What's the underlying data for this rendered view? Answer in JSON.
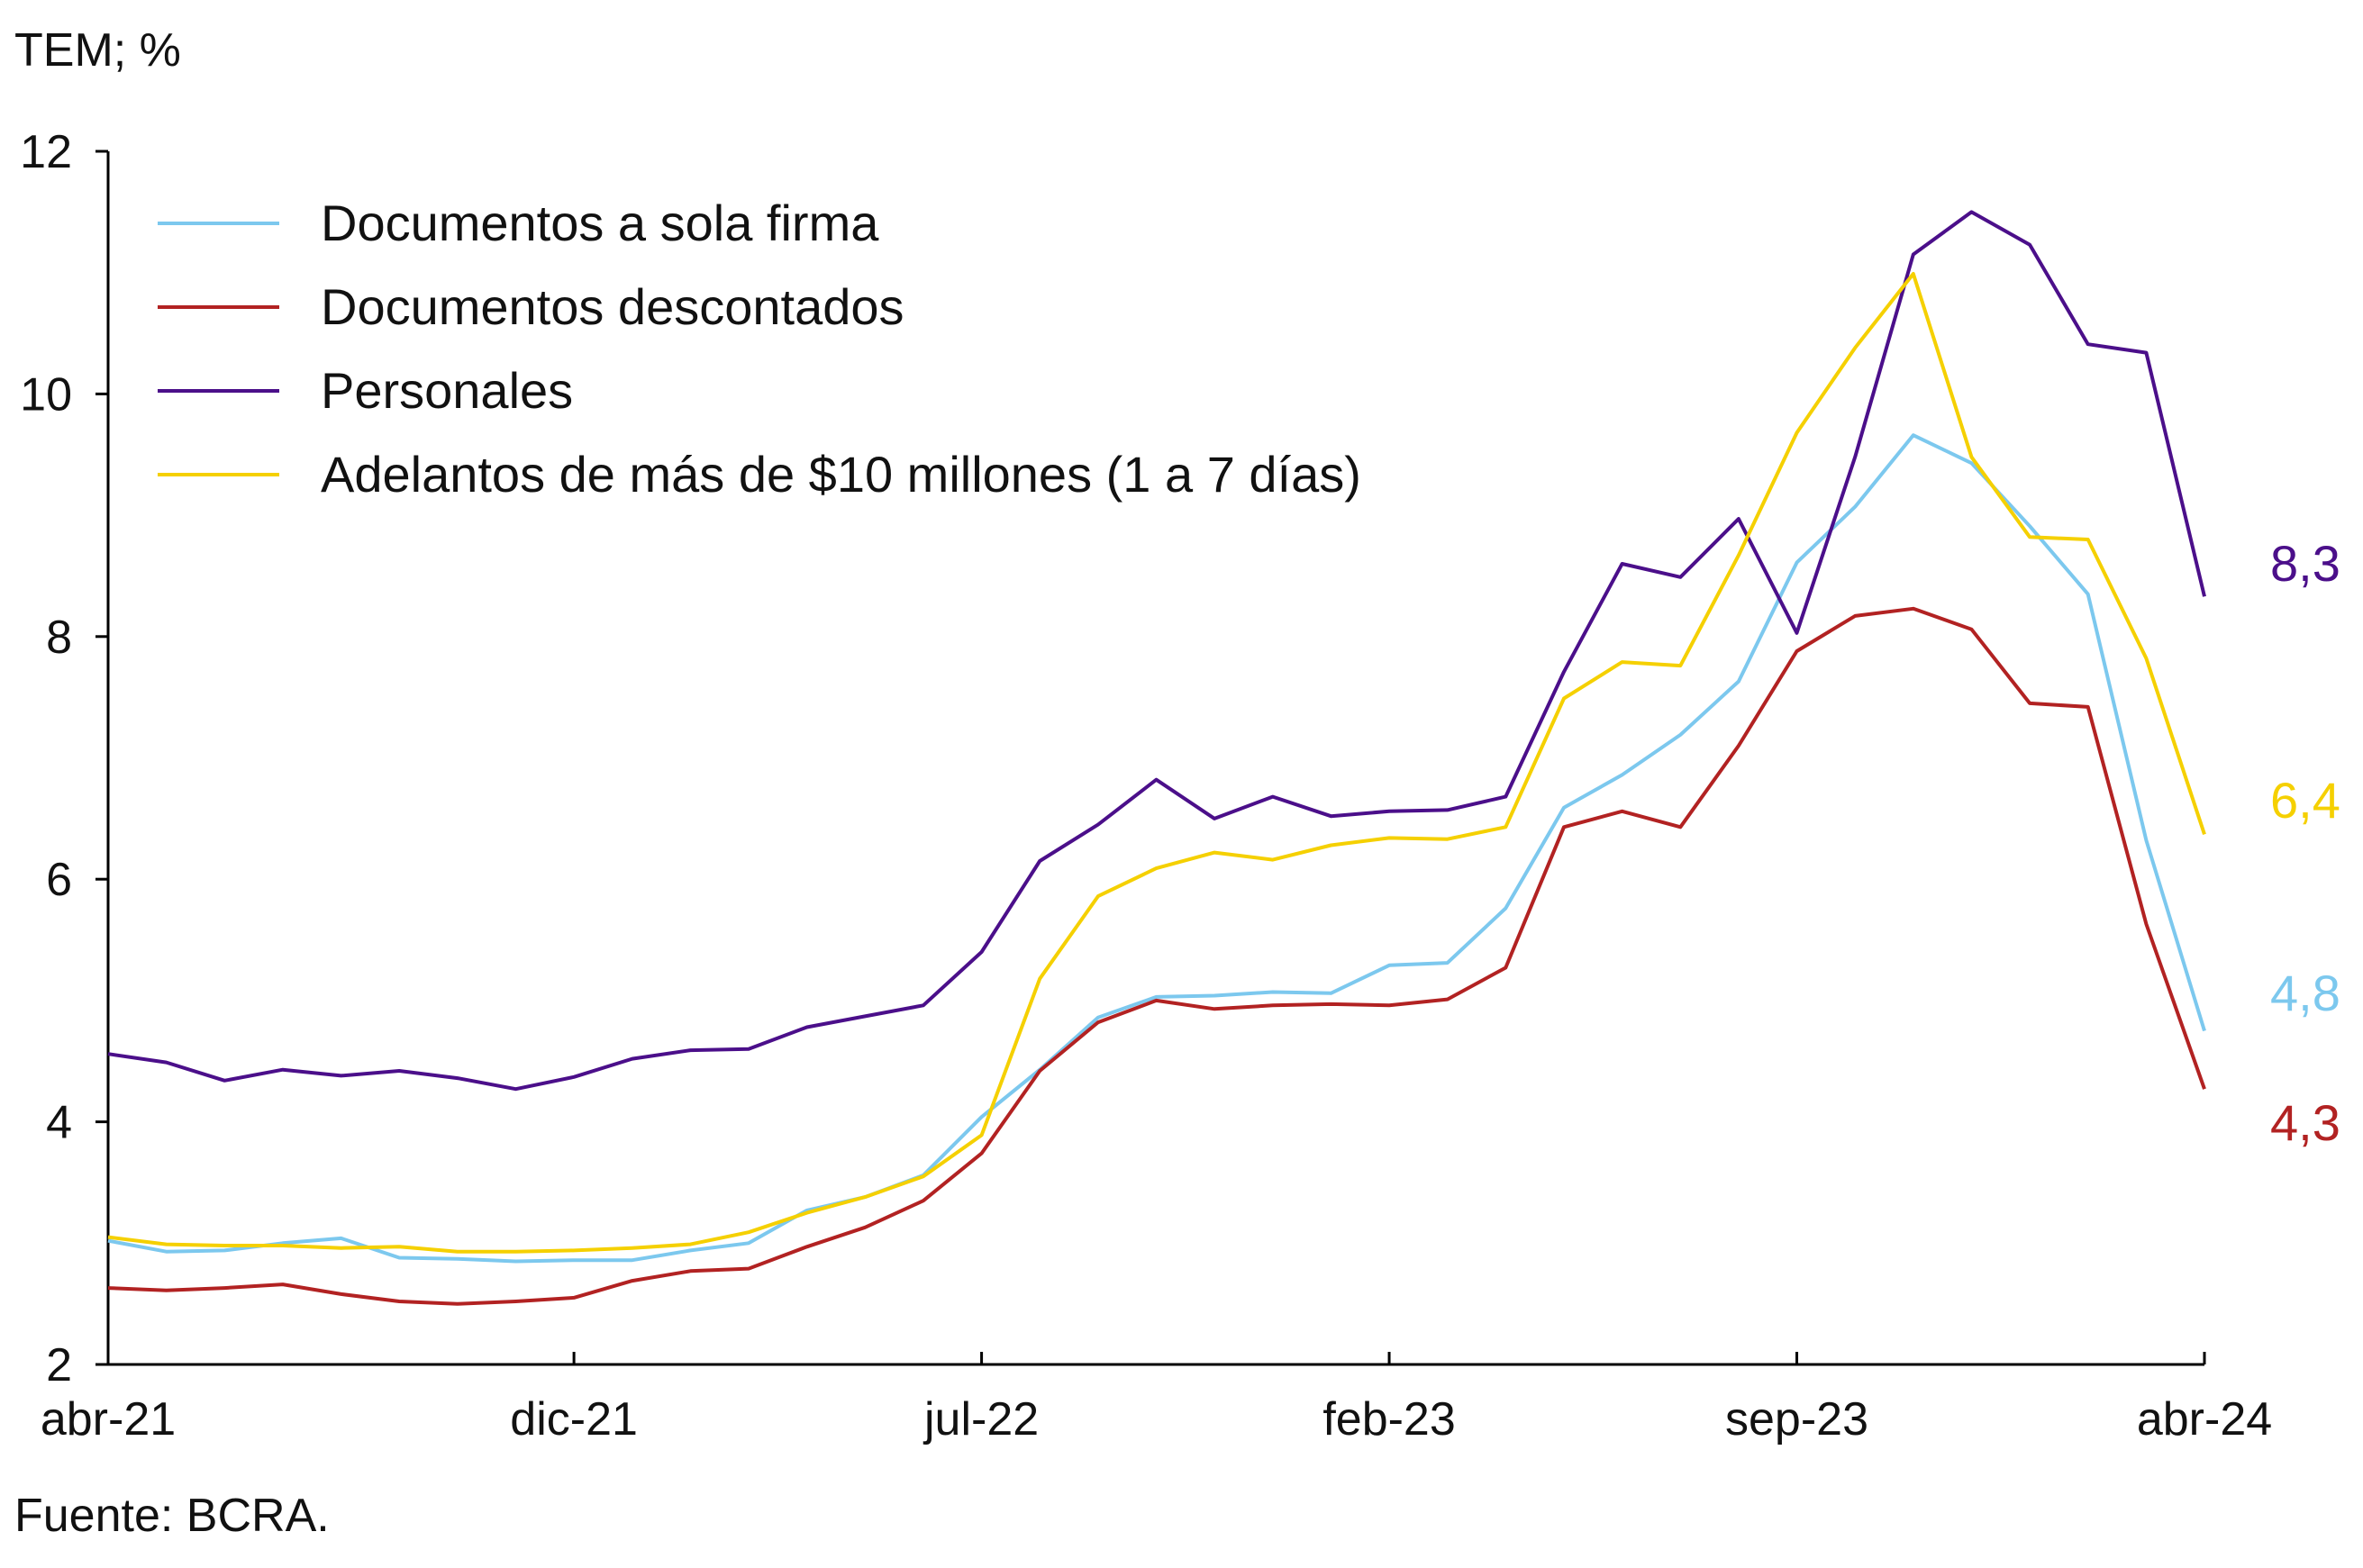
{
  "chart_data": {
    "type": "line",
    "ylabel": "TEM; %",
    "source": "Fuente: BCRA.",
    "ylim": [
      2,
      12
    ],
    "yticks": [
      "2",
      "4",
      "6",
      "8",
      "10",
      "12"
    ],
    "xlim": [
      0,
      36
    ],
    "x_tick_labels": [
      {
        "label": "abr-21",
        "x": 0
      },
      {
        "label": "dic-21",
        "x": 8
      },
      {
        "label": "jul-22",
        "x": 15
      },
      {
        "label": "feb-23",
        "x": 22
      },
      {
        "label": "sep-23",
        "x": 29
      },
      {
        "label": "abr-24",
        "x": 36
      }
    ],
    "grid": false,
    "legend_position": "top-left",
    "series": [
      {
        "name": "Documentos a sola firma",
        "color": "#7cc8ee",
        "end_label": "4,8",
        "values": [
          3.02,
          2.93,
          2.94,
          3.0,
          3.04,
          2.88,
          2.87,
          2.85,
          2.86,
          2.86,
          2.94,
          3.0,
          3.27,
          3.38,
          3.56,
          4.04,
          4.43,
          4.86,
          5.03,
          5.04,
          5.07,
          5.06,
          5.29,
          5.31,
          5.76,
          6.59,
          6.86,
          7.19,
          7.63,
          8.61,
          9.07,
          9.66,
          9.43,
          8.91,
          8.35,
          6.32,
          4.75
        ]
      },
      {
        "name": "Documentos descontados",
        "color": "#b22222",
        "end_label": "4,3",
        "values": [
          2.63,
          2.61,
          2.63,
          2.66,
          2.58,
          2.52,
          2.5,
          2.52,
          2.55,
          2.69,
          2.77,
          2.79,
          2.97,
          3.13,
          3.35,
          3.74,
          4.42,
          4.82,
          5.0,
          4.93,
          4.96,
          4.97,
          4.96,
          5.01,
          5.27,
          6.43,
          6.56,
          6.43,
          7.1,
          7.88,
          8.17,
          8.23,
          8.06,
          7.45,
          7.42,
          5.63,
          4.27
        ]
      },
      {
        "name": "Personales",
        "color": "#4b0f8a",
        "end_label": "8,3",
        "values": [
          4.56,
          4.49,
          4.34,
          4.43,
          4.38,
          4.42,
          4.36,
          4.27,
          4.37,
          4.52,
          4.59,
          4.6,
          4.78,
          4.87,
          4.96,
          5.4,
          6.15,
          6.45,
          6.82,
          6.5,
          6.68,
          6.52,
          6.56,
          6.57,
          6.68,
          7.71,
          8.6,
          8.49,
          8.97,
          8.03,
          9.48,
          11.15,
          11.5,
          11.23,
          10.41,
          10.34,
          8.33
        ]
      },
      {
        "name": "Adelantos de más de $10 millones (1 a 7 días)",
        "color": "#f5d000",
        "end_label": "6,4",
        "values": [
          3.05,
          2.99,
          2.98,
          2.98,
          2.96,
          2.97,
          2.93,
          2.93,
          2.94,
          2.96,
          2.99,
          3.09,
          3.25,
          3.38,
          3.55,
          3.89,
          5.18,
          5.86,
          6.09,
          6.22,
          6.16,
          6.28,
          6.34,
          6.33,
          6.43,
          7.49,
          7.79,
          7.76,
          8.67,
          9.68,
          10.38,
          10.99,
          9.48,
          8.82,
          8.8,
          7.82,
          6.37
        ]
      }
    ]
  }
}
